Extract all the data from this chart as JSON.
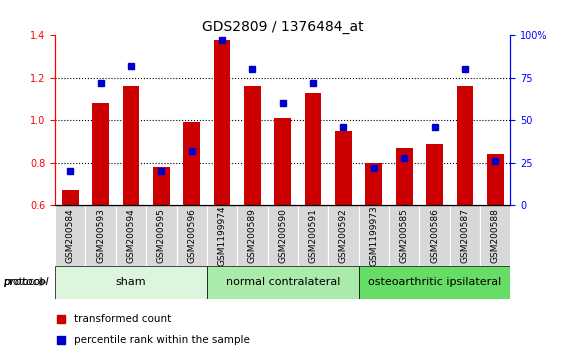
{
  "title": "GDS2809 / 1376484_at",
  "categories": [
    "GSM200584",
    "GSM200593",
    "GSM200594",
    "GSM200595",
    "GSM200596",
    "GSM1199974",
    "GSM200589",
    "GSM200590",
    "GSM200591",
    "GSM200592",
    "GSM1199973",
    "GSM200585",
    "GSM200586",
    "GSM200587",
    "GSM200588"
  ],
  "red_values": [
    0.67,
    1.08,
    1.16,
    0.78,
    0.99,
    1.38,
    1.16,
    1.01,
    1.13,
    0.95,
    0.8,
    0.87,
    0.89,
    1.16,
    0.84
  ],
  "blue_values": [
    20,
    72,
    82,
    20,
    32,
    97,
    80,
    60,
    72,
    46,
    22,
    28,
    46,
    80,
    26
  ],
  "ylim_left": [
    0.6,
    1.4
  ],
  "ylim_right": [
    0,
    100
  ],
  "yticks_left": [
    0.6,
    0.8,
    1.0,
    1.2,
    1.4
  ],
  "yticks_right": [
    0,
    25,
    50,
    75,
    100
  ],
  "ytick_labels_right": [
    "0",
    "25",
    "50",
    "75",
    "100%"
  ],
  "groups": [
    {
      "label": "sham",
      "start": 0,
      "end": 5,
      "color": "#ddf5dd"
    },
    {
      "label": "normal contralateral",
      "start": 5,
      "end": 10,
      "color": "#aaeaaa"
    },
    {
      "label": "osteoarthritic ipsilateral",
      "start": 10,
      "end": 15,
      "color": "#66dd66"
    }
  ],
  "legend_red_label": "transformed count",
  "legend_blue_label": "percentile rank within the sample",
  "protocol_label": "protocol",
  "bar_color": "#cc0000",
  "dot_color": "#0000cc",
  "bar_bottom": 0.6,
  "background_color": "#ffffff",
  "title_fontsize": 10,
  "tick_fontsize": 7,
  "group_label_fontsize": 8,
  "xtick_label_fontsize": 6.5
}
